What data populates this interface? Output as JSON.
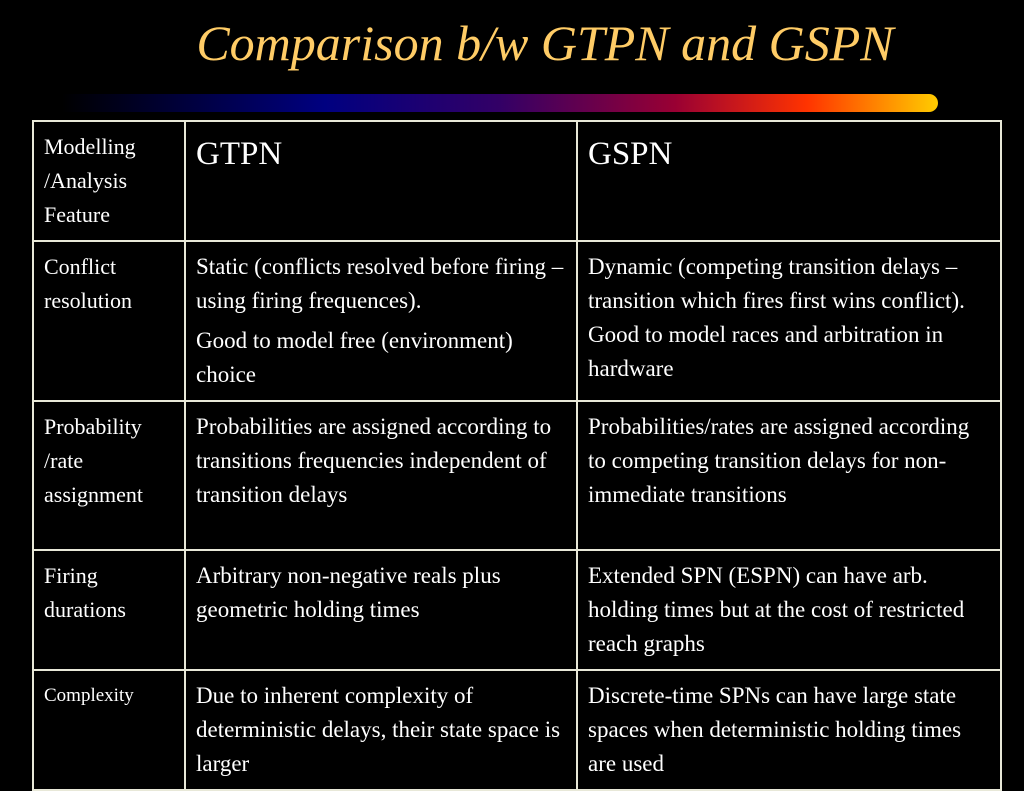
{
  "slide": {
    "title": "Comparison b/w GTPN and GSPN",
    "accent_color": "#ffcc66"
  },
  "table": {
    "header": {
      "feature": "Modelling /Analysis Feature",
      "col_gtpn": "GTPN",
      "col_gspn": "GSPN"
    },
    "rows": [
      {
        "feature": "Conflict resolution",
        "gtpn": [
          "Static (conflicts resolved before firing – using firing frequences).",
          "Good to model free (environment) choice"
        ],
        "gspn": "Dynamic (competing transition delays – transition which fires first wins conflict). Good to model races and arbitration in hardware"
      },
      {
        "feature": "Probability /rate assignment",
        "gtpn": "Probabilities are assigned according to transitions frequencies  independent of transition delays",
        "gspn": "Probabilities/rates are assigned according to competing transition delays for non-immediate transitions"
      },
      {
        "feature": "Firing durations",
        "gtpn": "Arbitrary non-negative reals plus geometric holding times",
        "gspn": "Extended SPN (ESPN) can have arb. holding times but at the cost of restricted reach graphs"
      },
      {
        "feature": "Complexity",
        "gtpn": "Due to inherent complexity of deterministic delays, their state space is larger",
        "gspn": "Discrete-time SPNs can have large state spaces when deterministic holding times are used"
      }
    ]
  }
}
